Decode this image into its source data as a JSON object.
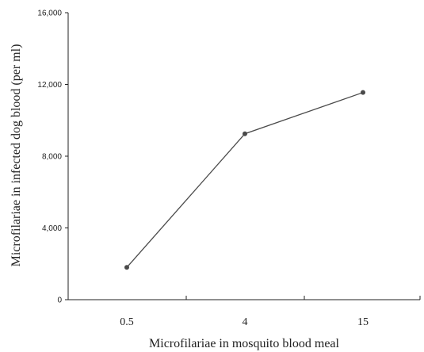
{
  "chart_data": {
    "type": "line",
    "title": "",
    "xlabel": "Microfilariae in mosquito blood meal",
    "ylabel": "Microfilariae in infected dog blood (per ml)",
    "categories": [
      "0.5",
      "4",
      "15"
    ],
    "series": [
      {
        "values": [
          1800,
          9250,
          11550
        ],
        "color": "#4a4a4a"
      }
    ],
    "y_ticks": [
      "0",
      "4,000",
      "8,000",
      "12,000",
      "16,000"
    ],
    "y_tick_values": [
      0,
      4000,
      8000,
      12000,
      16000
    ],
    "ylim": [
      0,
      16000
    ],
    "grid": false,
    "legend": "none",
    "axis_color": "#222222",
    "marker_color": "#4a4a4a"
  }
}
